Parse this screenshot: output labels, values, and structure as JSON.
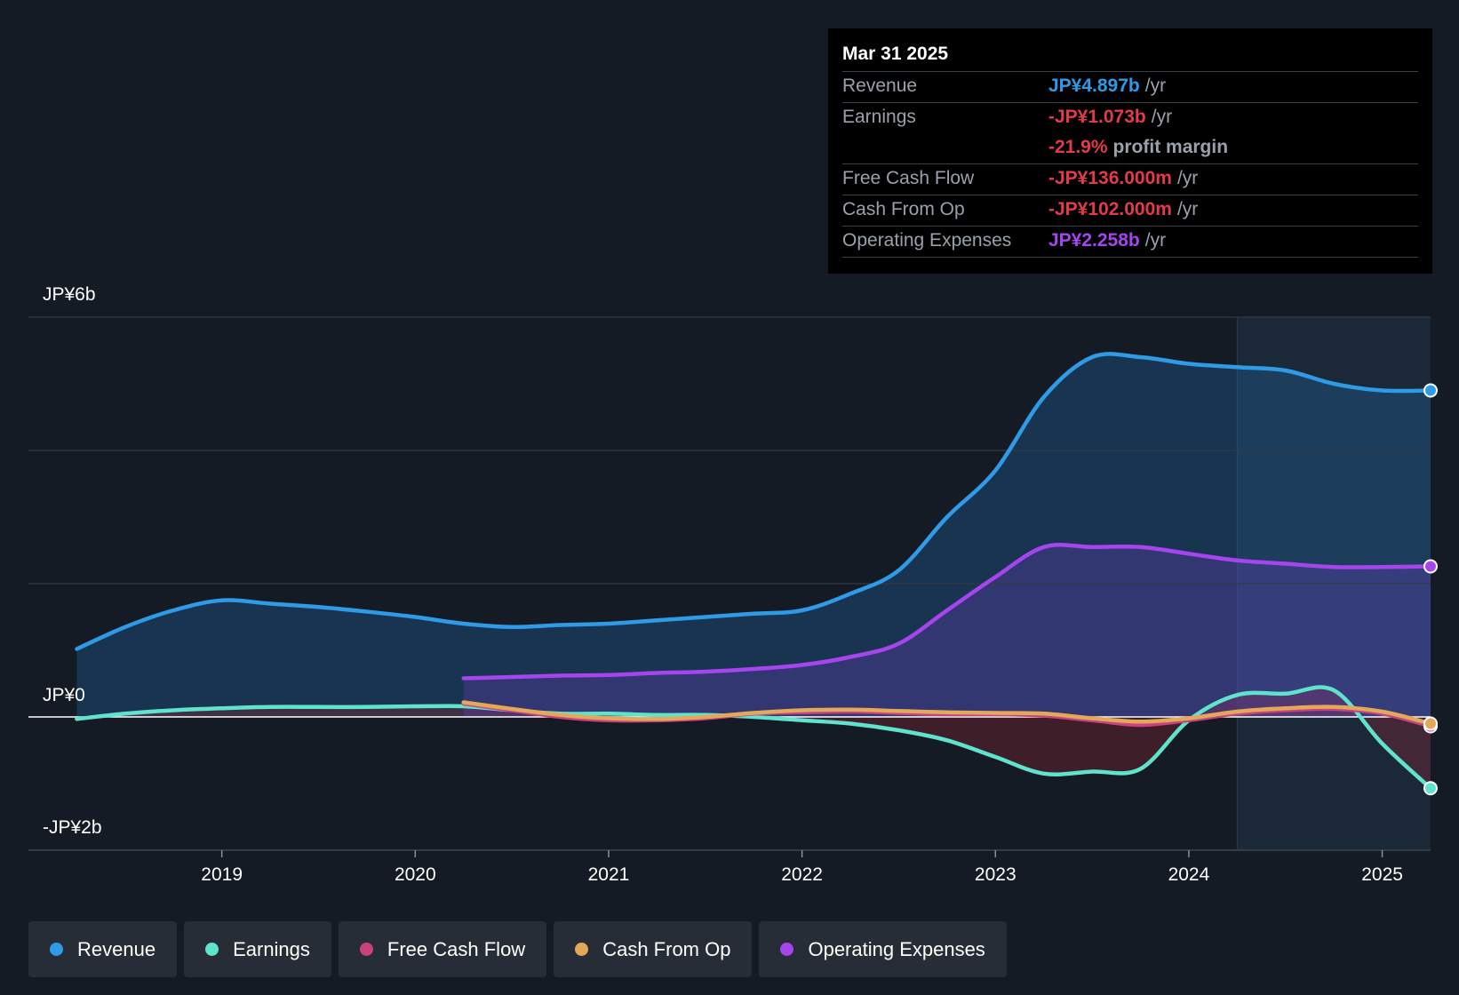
{
  "tooltip": {
    "date": "Mar 31 2025",
    "rows": [
      {
        "label": "Revenue",
        "value": "JP¥4.897b",
        "unit": "/yr",
        "color": "#2f9be6"
      },
      {
        "label": "Earnings",
        "value": "-JP¥1.073b",
        "unit": "/yr",
        "color": "#e23b4a"
      },
      {
        "label": "",
        "value": "-21.9%",
        "unit": "profit margin",
        "color": "#e23b4a"
      },
      {
        "label": "Free Cash Flow",
        "value": "-JP¥136.000m",
        "unit": "/yr",
        "color": "#e23b4a"
      },
      {
        "label": "Cash From Op",
        "value": "-JP¥102.000m",
        "unit": "/yr",
        "color": "#e23b4a"
      },
      {
        "label": "Operating Expenses",
        "value": "JP¥2.258b",
        "unit": "/yr",
        "color": "#a545ee"
      }
    ]
  },
  "legend": [
    {
      "label": "Revenue",
      "color": "#2f9be6"
    },
    {
      "label": "Earnings",
      "color": "#5fe3cc"
    },
    {
      "label": "Free Cash Flow",
      "color": "#c8427e"
    },
    {
      "label": "Cash From Op",
      "color": "#e3a95a"
    },
    {
      "label": "Operating Expenses",
      "color": "#a545ee"
    }
  ],
  "chart_data": {
    "type": "line",
    "y_labels": [
      "JP¥6b",
      "JP¥0",
      "-JP¥2b"
    ],
    "x_ticks": [
      "2019",
      "2020",
      "2021",
      "2022",
      "2023",
      "2024",
      "2025"
    ],
    "x_range": [
      2018.0,
      2025.25
    ],
    "ylim": [
      -2,
      6
    ],
    "unit": "JP¥ billions",
    "series": [
      {
        "name": "Revenue",
        "color": "#2f9be6",
        "x": [
          2018.25,
          2018.5,
          2018.75,
          2019.0,
          2019.25,
          2019.5,
          2019.75,
          2020.0,
          2020.25,
          2020.5,
          2020.75,
          2021.0,
          2021.25,
          2021.5,
          2021.75,
          2022.0,
          2022.25,
          2022.5,
          2022.75,
          2023.0,
          2023.25,
          2023.5,
          2023.75,
          2024.0,
          2024.25,
          2024.5,
          2024.75,
          2025.0,
          2025.25
        ],
        "y": [
          1.02,
          1.35,
          1.6,
          1.75,
          1.7,
          1.65,
          1.58,
          1.5,
          1.4,
          1.35,
          1.38,
          1.4,
          1.45,
          1.5,
          1.55,
          1.6,
          1.85,
          2.2,
          3.0,
          3.7,
          4.8,
          5.4,
          5.4,
          5.3,
          5.25,
          5.2,
          5.0,
          4.9,
          4.9
        ]
      },
      {
        "name": "Earnings",
        "color": "#5fe3cc",
        "x": [
          2018.25,
          2018.5,
          2018.75,
          2019.0,
          2019.25,
          2019.5,
          2019.75,
          2020.0,
          2020.25,
          2020.5,
          2020.75,
          2021.0,
          2021.25,
          2021.5,
          2021.75,
          2022.0,
          2022.25,
          2022.5,
          2022.75,
          2023.0,
          2023.25,
          2023.5,
          2023.75,
          2024.0,
          2024.25,
          2024.5,
          2024.75,
          2025.0,
          2025.25
        ],
        "y": [
          -0.03,
          0.05,
          0.1,
          0.13,
          0.15,
          0.15,
          0.15,
          0.16,
          0.16,
          0.1,
          0.05,
          0.05,
          0.03,
          0.03,
          0.0,
          -0.05,
          -0.1,
          -0.2,
          -0.35,
          -0.6,
          -0.85,
          -0.82,
          -0.78,
          -0.05,
          0.33,
          0.35,
          0.4,
          -0.4,
          -1.07
        ]
      },
      {
        "name": "Free Cash Flow",
        "color": "#c8427e",
        "x": [
          2020.25,
          2020.5,
          2020.75,
          2021.0,
          2021.25,
          2021.5,
          2021.75,
          2022.0,
          2022.25,
          2022.5,
          2022.75,
          2023.0,
          2023.25,
          2023.5,
          2023.75,
          2024.0,
          2024.25,
          2024.5,
          2024.75,
          2025.0,
          2025.25
        ],
        "y": [
          0.2,
          0.1,
          0.0,
          -0.05,
          -0.05,
          -0.02,
          0.05,
          0.07,
          0.08,
          0.06,
          0.04,
          0.04,
          0.02,
          -0.05,
          -0.12,
          -0.05,
          0.05,
          0.1,
          0.12,
          0.05,
          -0.14
        ]
      },
      {
        "name": "Cash From Op",
        "color": "#e3a95a",
        "x": [
          2020.25,
          2020.5,
          2020.75,
          2021.0,
          2021.25,
          2021.5,
          2021.75,
          2022.0,
          2022.25,
          2022.5,
          2022.75,
          2023.0,
          2023.25,
          2023.5,
          2023.75,
          2024.0,
          2024.25,
          2024.5,
          2024.75,
          2025.0,
          2025.25
        ],
        "y": [
          0.22,
          0.12,
          0.03,
          -0.02,
          -0.03,
          0.0,
          0.06,
          0.1,
          0.11,
          0.09,
          0.07,
          0.06,
          0.05,
          -0.02,
          -0.07,
          -0.02,
          0.08,
          0.13,
          0.15,
          0.08,
          -0.1
        ]
      },
      {
        "name": "Operating Expenses",
        "color": "#a545ee",
        "x": [
          2020.25,
          2020.5,
          2020.75,
          2021.0,
          2021.25,
          2021.5,
          2021.75,
          2022.0,
          2022.25,
          2022.5,
          2022.75,
          2023.0,
          2023.25,
          2023.5,
          2023.75,
          2024.0,
          2024.25,
          2024.5,
          2024.75,
          2025.0,
          2025.25
        ],
        "y": [
          0.58,
          0.6,
          0.62,
          0.63,
          0.66,
          0.68,
          0.72,
          0.78,
          0.9,
          1.1,
          1.6,
          2.1,
          2.55,
          2.55,
          2.55,
          2.45,
          2.35,
          2.3,
          2.25,
          2.25,
          2.26
        ]
      }
    ]
  }
}
